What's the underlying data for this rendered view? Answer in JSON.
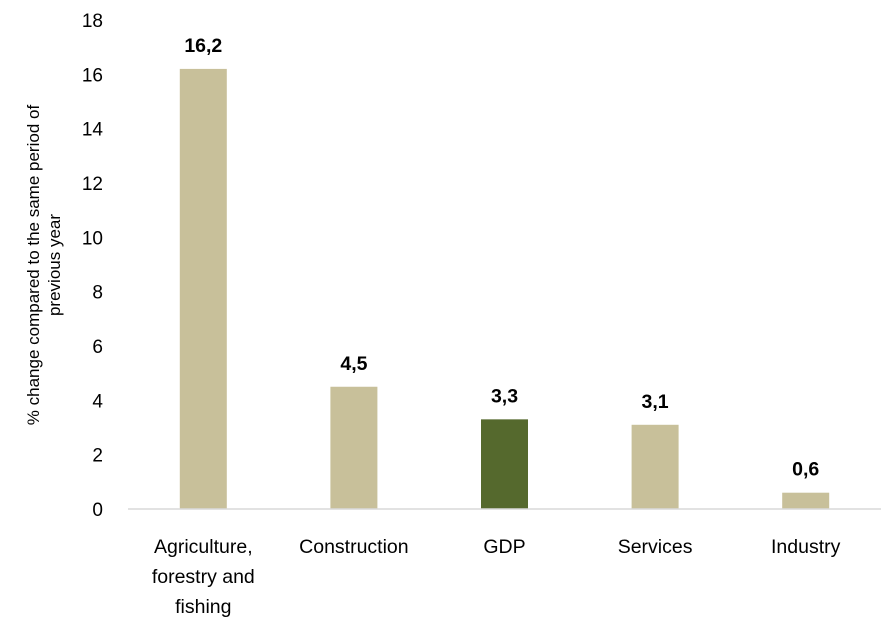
{
  "chart_data": {
    "type": "bar",
    "categories": [
      [
        "Agriculture,",
        "forestry and",
        "fishing"
      ],
      [
        "Construction"
      ],
      [
        "GDP"
      ],
      [
        "Services"
      ],
      [
        "Industry"
      ]
    ],
    "values": [
      16.2,
      4.5,
      3.3,
      3.1,
      0.6
    ],
    "value_labels": [
      "16,2",
      "4,5",
      "3,3",
      "3,1",
      "0,6"
    ],
    "bar_colors": [
      "#c8c09a",
      "#c8c09a",
      "#55692d",
      "#c8c09a",
      "#c8c09a"
    ],
    "ylabel": [
      "% change compared to the same period of",
      "previous year"
    ],
    "ylim": [
      0,
      18
    ],
    "yticks": [
      0,
      2,
      4,
      6,
      8,
      10,
      12,
      14,
      16,
      18
    ],
    "grid": false,
    "legend": "none",
    "axis_color": "#d9d9d9"
  }
}
